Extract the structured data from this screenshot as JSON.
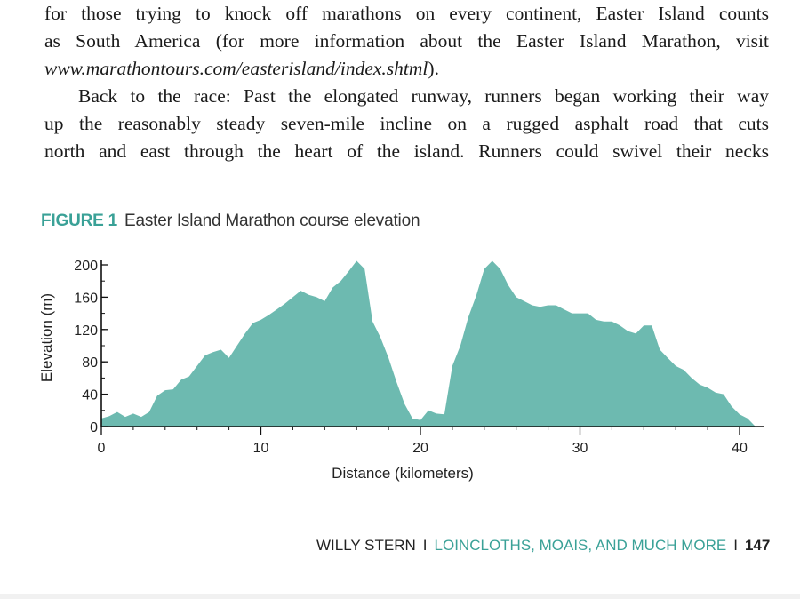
{
  "body": {
    "line1": "for those trying to knock off marathons on every continent, Easter Island counts",
    "line2": "as South America (for more information about the Easter Island Marathon, visit",
    "url": "www.marathontours.com/easterisland/index.shtml",
    "line3_suffix": ").",
    "line4": "Back to the race: Past the elongated runway, runners began working their way",
    "line5": "up the reasonably steady seven-mile incline on a rugged asphalt road that cuts",
    "line6": "north and east through the heart of the island. Runners could swivel their necks"
  },
  "figure": {
    "label": "FIGURE 1",
    "caption": "Easter Island Marathon course elevation"
  },
  "chart_data": {
    "type": "area",
    "xlabel": "Distance (kilometers)",
    "ylabel": "Elevation (m)",
    "xlim": [
      0,
      41
    ],
    "ylim": [
      0,
      200
    ],
    "x_ticks": [
      0,
      10,
      20,
      30,
      40
    ],
    "y_ticks": [
      0,
      40,
      80,
      120,
      160,
      200
    ],
    "fill_color": "#6dbab0",
    "series": [
      {
        "x": [
          0,
          0.5,
          1,
          1.5,
          2,
          2.5,
          3,
          3.5,
          4,
          4.5,
          5,
          5.5,
          6,
          6.5,
          7,
          7.5,
          8,
          8.5,
          9,
          9.5,
          10,
          10.5,
          11,
          11.5,
          12,
          12.5,
          13,
          13.5,
          14,
          14.5,
          15,
          15.5,
          16,
          16.5,
          17,
          17.5,
          18,
          18.5,
          19,
          19.5,
          20,
          20.5,
          21,
          21.5,
          22,
          22.5,
          23,
          23.5,
          24,
          24.5,
          25,
          25.5,
          26,
          26.5,
          27,
          27.5,
          28,
          28.5,
          29,
          29.5,
          30,
          30.5,
          31,
          31.5,
          32,
          32.5,
          33,
          33.5,
          34,
          34.5,
          35,
          35.5,
          36,
          36.5,
          37,
          37.5,
          38,
          38.5,
          39,
          39.5,
          40,
          40.5,
          41
        ],
        "y": [
          10,
          13,
          18,
          12,
          16,
          12,
          18,
          38,
          45,
          46,
          58,
          62,
          75,
          88,
          92,
          95,
          85,
          100,
          115,
          128,
          132,
          138,
          145,
          152,
          160,
          168,
          163,
          160,
          155,
          172,
          180,
          192,
          205,
          195,
          130,
          110,
          85,
          55,
          28,
          10,
          8,
          20,
          16,
          15,
          75,
          100,
          135,
          162,
          195,
          205,
          195,
          175,
          160,
          155,
          150,
          148,
          150,
          150,
          145,
          140,
          140,
          140,
          132,
          130,
          130,
          125,
          118,
          115,
          125,
          125,
          95,
          85,
          75,
          70,
          60,
          52,
          48,
          42,
          40,
          25,
          15,
          10,
          0
        ]
      }
    ]
  },
  "footer": {
    "author": "WILLY STERN",
    "separator": "I",
    "title": "LOINCLOTHS, MOAIS, AND MUCH MORE",
    "page": "147"
  }
}
